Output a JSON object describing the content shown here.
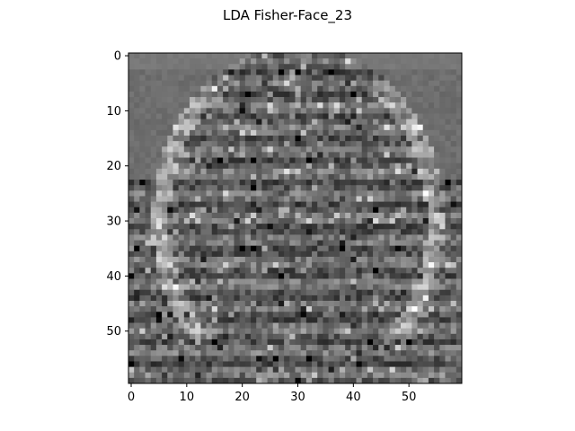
{
  "figure": {
    "title": "LDA Fisher-Face_23"
  },
  "image": {
    "rows": 60,
    "cols": 60,
    "colormap": "gray",
    "description_note": ""
  },
  "axes": {
    "x_ticks": [
      0,
      10,
      20,
      30,
      40,
      50
    ],
    "y_ticks": [
      0,
      10,
      20,
      30,
      40,
      50
    ]
  }
}
